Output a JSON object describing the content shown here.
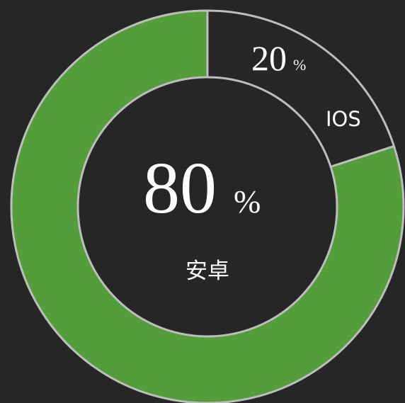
{
  "chart_data": {
    "type": "pie",
    "style": "donut",
    "slices": [
      {
        "label": "IOS",
        "value": 20,
        "value_text": "20",
        "unit": "%",
        "color": "#262626"
      },
      {
        "label": "安卓",
        "value": 80,
        "value_text": "80",
        "unit": "%",
        "color": "#539d3a"
      }
    ],
    "center": {
      "value_text": "80",
      "unit": "%",
      "label": "安卓"
    },
    "border_color": "#bdbdbd",
    "background": "#262626"
  }
}
